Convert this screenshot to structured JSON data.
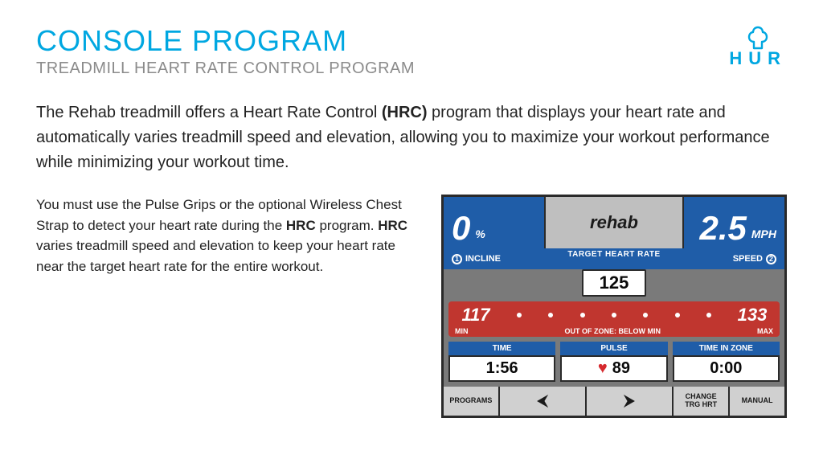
{
  "colors": {
    "brand_blue": "#00a7e1",
    "subtitle_gray": "#8b8b8b",
    "body_text": "#232323",
    "console_blue": "#1f5da8",
    "console_red": "#c0362f",
    "console_frame": "#2a2a2a",
    "console_gray": "#7a7a7a"
  },
  "header": {
    "title": "CONSOLE PROGRAM",
    "subtitle": "TREADMILL HEART RATE CONTROL PROGRAM",
    "logo_text": "HUR"
  },
  "intro": {
    "pre": "The Rehab treadmill offers a Heart Rate Control ",
    "bold": "(HRC)",
    "post": " program that displays your heart rate and automatically varies treadmill speed and elevation, allowing you to maximize your workout performance while minimizing your workout time."
  },
  "para2": {
    "t1": "You must use the Pulse Grips or the optional Wireless Chest Strap to detect your heart rate during the ",
    "b1": "HRC",
    "t2": " program. ",
    "b2": "HRC",
    "t3": " varies treadmill speed and elevation to keep your heart rate near the target heart rate for the entire workout."
  },
  "console": {
    "incline": {
      "value": "0",
      "unit": "%",
      "label": "INCLINE",
      "badge": "1"
    },
    "speed": {
      "value": "2.5",
      "unit": "MPH",
      "label": "SPEED",
      "badge": "2"
    },
    "brand": "rehab",
    "target_label": "TARGET HEART RATE",
    "target_value": "125",
    "zone": {
      "min": "117",
      "max": "133",
      "min_label": "MIN",
      "status": "OUT OF ZONE: BELOW MIN",
      "max_label": "MAX",
      "dot_count": 7
    },
    "stats": [
      {
        "label": "TIME",
        "value": "1:56"
      },
      {
        "label": "PULSE",
        "value": "89",
        "heart": true
      },
      {
        "label": "TIME IN ZONE",
        "value": "0:00"
      }
    ],
    "buttons": {
      "programs": "PROGRAMS",
      "change": "CHANGE\nTRG HRT",
      "manual": "MANUAL"
    }
  }
}
